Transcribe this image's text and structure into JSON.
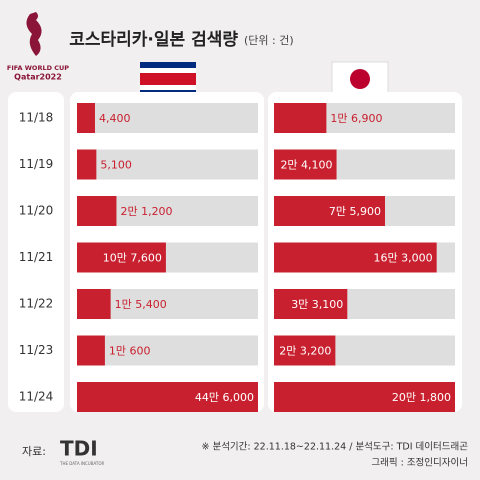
{
  "logo": {
    "line1": "FIFA WORLD CUP",
    "line2": "Qatar2022"
  },
  "chart_data": {
    "type": "bar",
    "orientation": "horizontal",
    "scale": "sqrt",
    "title": "코스타리카·일본 검색량",
    "subtitle": "(단위 : 건)",
    "categories": [
      "11/18",
      "11/19",
      "11/20",
      "11/21",
      "11/22",
      "11/23",
      "11/24"
    ],
    "series": [
      {
        "color": "#c9202f",
        "xlim": [
          0,
          446000
        ],
        "values": [
          4400,
          5100,
          21200,
          107600,
          15400,
          10600,
          446000
        ],
        "value_labels": [
          "4,400",
          "5,100",
          "2만 1,200",
          "10만 7,600",
          "1만 5,400",
          "1만 600",
          "44만 6,000"
        ]
      },
      {
        "color": "#c9202f",
        "xlim": [
          0,
          201800
        ],
        "values": [
          16900,
          24100,
          75900,
          163000,
          33100,
          23200,
          201800
        ],
        "value_labels": [
          "1만 6,900",
          "2만 4,100",
          "7만 5,900",
          "16만 3,000",
          "3만 3,100",
          "2만 3,200",
          "20만 1,800"
        ]
      }
    ]
  },
  "footer": {
    "source_label": "자료:",
    "brand": "TDI",
    "brand_sub": "THE DATA INCUBATOR",
    "note": "※ 분석기간: 22.11.18~22.11.24 / 분석도구: TDI 데이터드래곤",
    "credit": "그래픽 : 조정인디자이너"
  }
}
